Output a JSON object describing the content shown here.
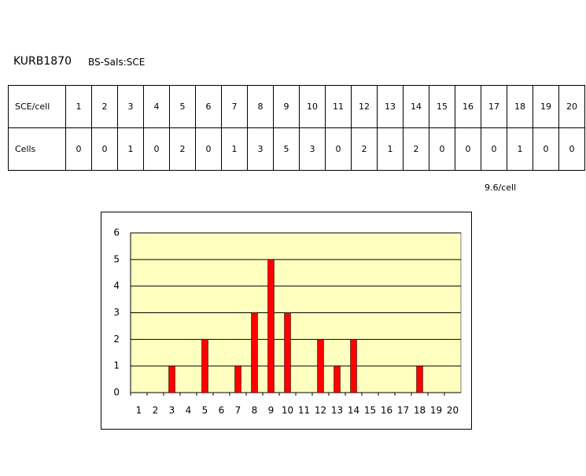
{
  "title": "KURB1870",
  "subtitle": "BS-SaIs:SCE",
  "table": {
    "rows": [
      [
        "SCE/cell",
        1,
        2,
        3,
        4,
        5,
        6,
        7,
        8,
        9,
        10,
        11,
        12,
        13,
        14,
        15,
        16,
        17,
        18,
        19,
        20
      ],
      [
        "Cells",
        0,
        0,
        1,
        0,
        2,
        0,
        1,
        3,
        5,
        3,
        0,
        2,
        1,
        2,
        0,
        0,
        0,
        1,
        0,
        0
      ]
    ]
  },
  "note": "9.6/cell",
  "chart_data": {
    "type": "bar",
    "categories": [
      "1",
      "2",
      "3",
      "4",
      "5",
      "6",
      "7",
      "8",
      "9",
      "10",
      "11",
      "12",
      "13",
      "14",
      "15",
      "16",
      "17",
      "18",
      "19",
      "20"
    ],
    "values": [
      0,
      0,
      1,
      0,
      2,
      0,
      1,
      3,
      5,
      3,
      0,
      2,
      1,
      2,
      0,
      0,
      0,
      1,
      0,
      0
    ],
    "color": "#ff0000",
    "ylim": [
      0,
      6
    ],
    "yticks": [
      0,
      1,
      2,
      3,
      4,
      5,
      6
    ],
    "grid": true
  }
}
